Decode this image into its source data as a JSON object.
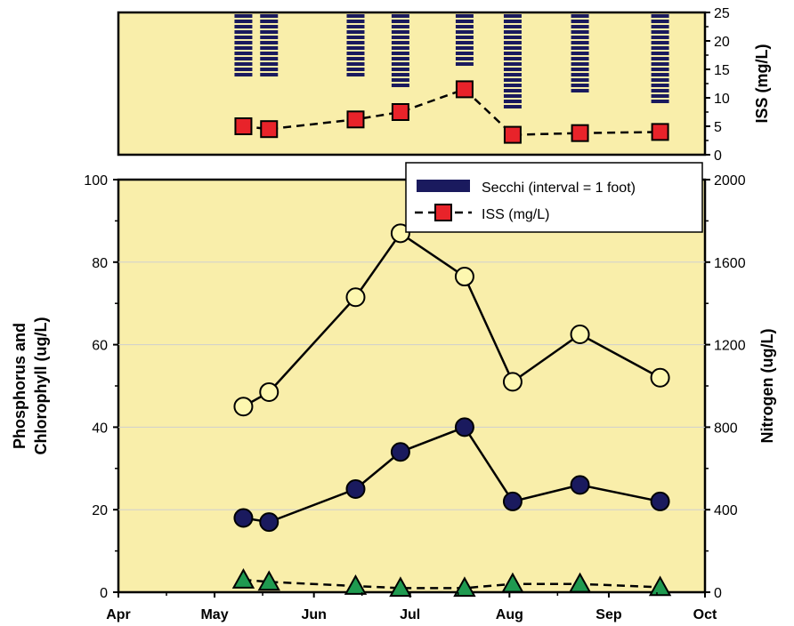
{
  "colors": {
    "panel_bg": "#f9eeaa",
    "secchi": "#1a1a5e",
    "iss_fill": "#e8232a",
    "phosphorus_fill": "#1a1a5e",
    "chlorophyll_fill": "#fdf7b0",
    "nitrogen_fill": "#1f9a50",
    "grid": "#cfcfcf"
  },
  "chart_data": [
    {
      "type": "bar",
      "y_right_label": "ISS (mg/L)",
      "y_right_ticks": [
        "25",
        "20",
        "15",
        "10",
        "5",
        "0"
      ],
      "ylim": [
        0,
        25
      ],
      "secchi": {
        "name": "Secchi (interval = 1 foot)",
        "x": [
          "2000-05-10",
          "2000-05-18",
          "2000-06-14",
          "2000-06-28",
          "2000-07-18",
          "2000-08-02",
          "2000-08-23",
          "2000-09-17"
        ],
        "depth_ft": [
          12,
          12,
          12,
          14,
          10,
          18,
          15,
          17
        ]
      },
      "iss": {
        "name": "ISS (mg/L)",
        "x": [
          "2000-05-10",
          "2000-05-18",
          "2000-06-14",
          "2000-06-28",
          "2000-07-18",
          "2000-08-02",
          "2000-08-23",
          "2000-09-17"
        ],
        "values": [
          5,
          4.5,
          6.2,
          7.5,
          11.5,
          3.5,
          3.8,
          4
        ]
      }
    },
    {
      "type": "line",
      "x_tick_labels": [
        "Apr",
        "May",
        "Jun",
        "Jul",
        "Aug",
        "Sep",
        "Oct"
      ],
      "y_left_label_line1": "Phosphorus and",
      "y_left_label_line2": "Chlorophyll (ug/L)",
      "y_right_label": "Nitrogen (ug/L)",
      "y_left_ticks": [
        "100",
        "80",
        "60",
        "40",
        "20",
        "0"
      ],
      "y_right_ticks": [
        "2000",
        "1600",
        "1200",
        "800",
        "400",
        "0"
      ],
      "ylim_left": [
        0,
        100
      ],
      "ylim_right": [
        0,
        2000
      ],
      "legend": {
        "placement": "top-right",
        "entries": [
          "Secchi (interval = 1 foot)",
          "ISS (mg/L)"
        ]
      },
      "series": [
        {
          "x": [
            "2000-05-10",
            "2000-05-18",
            "2000-06-14",
            "2000-06-28",
            "2000-07-18",
            "2000-08-02",
            "2000-08-23",
            "2000-09-17"
          ],
          "values": [
            45,
            48.5,
            71.5,
            87,
            76.5,
            51,
            62.5,
            52
          ],
          "axis": "left",
          "marker": "circle"
        },
        {
          "x": [
            "2000-05-10",
            "2000-05-18",
            "2000-06-14",
            "2000-06-28",
            "2000-07-18",
            "2000-08-02",
            "2000-08-23",
            "2000-09-17"
          ],
          "values": [
            18,
            17,
            25,
            34,
            40,
            22,
            26,
            22
          ],
          "axis": "left",
          "marker": "circle"
        },
        {
          "x": [
            "2000-05-10",
            "2000-05-18",
            "2000-06-14",
            "2000-06-28",
            "2000-07-18",
            "2000-08-02",
            "2000-08-23",
            "2000-09-17"
          ],
          "values": [
            3,
            2.5,
            1.5,
            1,
            1,
            2,
            2,
            1.2
          ],
          "axis": "left",
          "marker": "triangle",
          "dashed": true
        }
      ]
    }
  ]
}
